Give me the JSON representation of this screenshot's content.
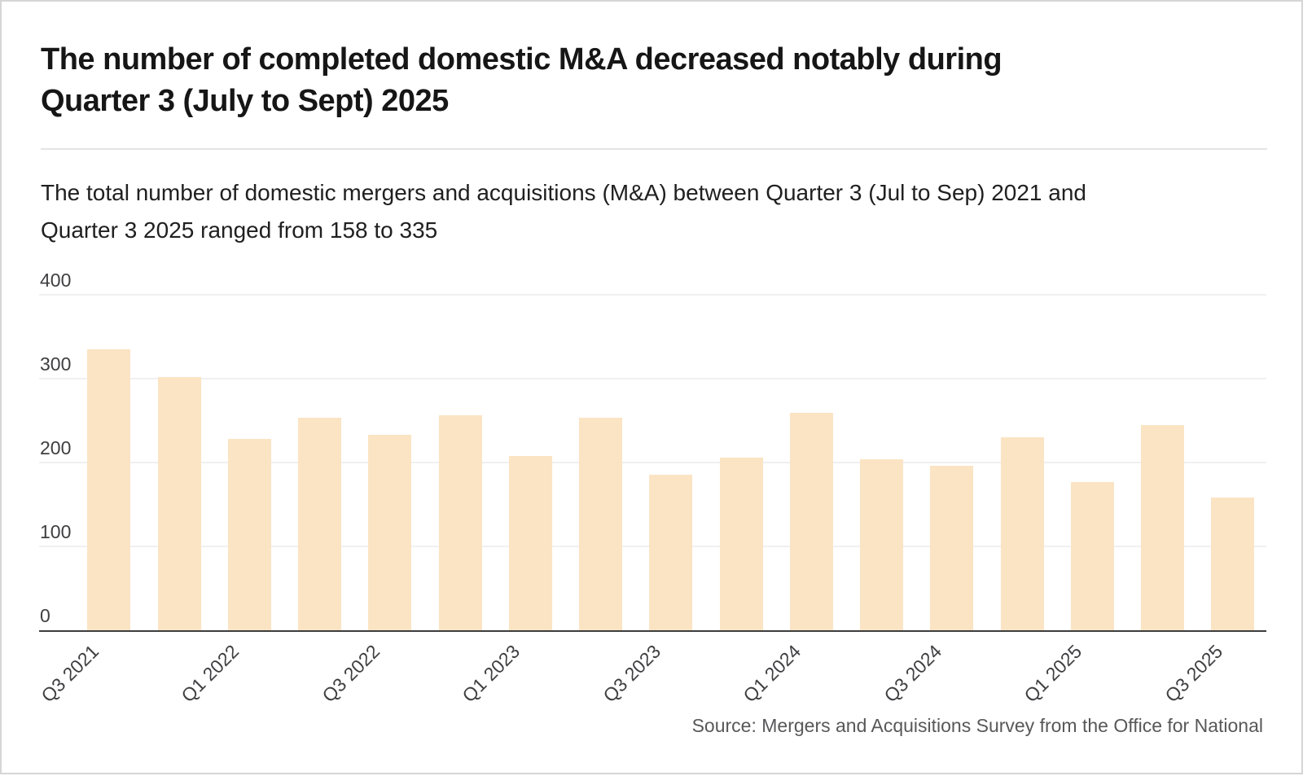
{
  "header": {
    "title": "The number of completed domestic M&A decreased notably during Quarter 3 (July to Sept) 2025",
    "subtitle": "The total number of domestic mergers and acquisitions (M&A) between Quarter 3 (Jul to Sep) 2021 and Quarter 3 2025 ranged from 158 to 335"
  },
  "footer": {
    "source": "Source: Mergers and Acquisitions Survey from the Office for National"
  },
  "chart_data": {
    "type": "bar",
    "title": "The number of completed domestic M&A decreased notably during Quarter 3 (July to Sept) 2025",
    "subtitle": "The total number of domestic mergers and acquisitions (M&A) between Quarter 3 (Jul to Sep) 2021 and Quarter 3 2025 ranged from 158 to 335",
    "categories": [
      "Q3 2021",
      "Q4 2021",
      "Q1 2022",
      "Q2 2022",
      "Q3 2022",
      "Q4 2022",
      "Q1 2023",
      "Q2 2023",
      "Q3 2023",
      "Q4 2023",
      "Q1 2024",
      "Q2 2024",
      "Q3 2024",
      "Q4 2024",
      "Q1 2025",
      "Q2 2025",
      "Q3 2025"
    ],
    "values": [
      335,
      302,
      228,
      253,
      233,
      256,
      208,
      253,
      185,
      206,
      259,
      204,
      196,
      230,
      177,
      245,
      158
    ],
    "x_tick_labels": [
      "Q3 2021",
      "Q1 2022",
      "Q3 2022",
      "Q1 2023",
      "Q3 2023",
      "Q1 2024",
      "Q3 2024",
      "Q1 2025",
      "Q3 2025"
    ],
    "labeled_indices": [
      0,
      2,
      4,
      6,
      8,
      10,
      12,
      14,
      16
    ],
    "y_ticks": [
      0,
      100,
      200,
      300,
      400
    ],
    "ylim": [
      0,
      400
    ],
    "xlabel": "",
    "ylabel": "",
    "grid": true,
    "legend": "none",
    "bar_color": "#fbe4c4",
    "gridline_color": "#f0f0f0",
    "axis_line_color": "#3d3d3d"
  }
}
